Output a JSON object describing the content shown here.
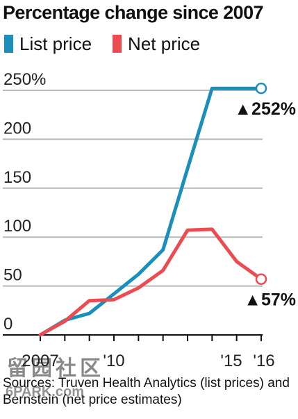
{
  "chart_data": {
    "type": "line",
    "title": "Percentage change since 2007",
    "xlabel": "",
    "ylabel": "",
    "x": [
      2007,
      2008,
      2009,
      2010,
      2011,
      2012,
      2013,
      2014,
      2015,
      2016
    ],
    "xlim": [
      2007,
      2016
    ],
    "ylim": [
      0,
      250
    ],
    "y_ticks": [
      {
        "value": 0,
        "label": "0"
      },
      {
        "value": 50,
        "label": "50"
      },
      {
        "value": 100,
        "label": "100"
      },
      {
        "value": 150,
        "label": "150"
      },
      {
        "value": 200,
        "label": "200"
      },
      {
        "value": 250,
        "label": "250%"
      }
    ],
    "x_ticks": [
      {
        "value": 2007,
        "label": "2007"
      },
      {
        "value": 2010,
        "label": "'10"
      },
      {
        "value": 2015,
        "label": "'15"
      },
      {
        "value": 2016,
        "label": "'16"
      }
    ],
    "grid": true,
    "legend_position": "top-left",
    "series": [
      {
        "name": "List price",
        "color": "#1a8fb9",
        "values": [
          0,
          15,
          22,
          42,
          62,
          87,
          170,
          252,
          252,
          252
        ]
      },
      {
        "name": "Net price",
        "color": "#ea4c52",
        "values": [
          0,
          14,
          35,
          36,
          48,
          66,
          107,
          108,
          75,
          57
        ]
      }
    ],
    "annotations": [
      {
        "series": 0,
        "x": 2016,
        "y": 252,
        "label": "▲252%"
      },
      {
        "series": 1,
        "x": 2016,
        "y": 57,
        "label": "▲57%"
      }
    ]
  },
  "source": "Sources: Truven Health Analytics (list prices) and Bernstein (net price estimates)",
  "watermark": {
    "main": "留园社区",
    "sub": "6PARK.com"
  }
}
